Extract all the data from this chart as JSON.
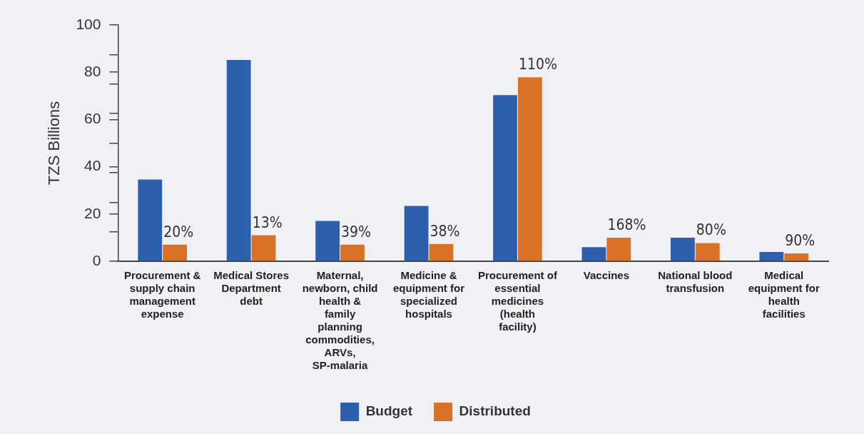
{
  "chart_data": {
    "type": "bar",
    "ylabel": "TZS Billions",
    "categories": [
      "Procurement & supply chain management expense",
      "Medical Stores Department debt",
      "Maternal, newborn, child health & family planning commodities, ARVs, SP-malaria",
      "Medicine & equipment for specialized hospitals",
      "Procurement of essential medicines (health facility)",
      "Vaccines",
      "National blood transfusion",
      "Medical equipment for health facilities"
    ],
    "series": [
      {
        "name": "Budget",
        "color": "#2e5fad",
        "values": [
          34.6,
          85.2,
          17.1,
          23.4,
          70.3,
          6.0,
          10.0,
          3.9
        ]
      },
      {
        "name": "Distributed",
        "color": "#d97126",
        "values": [
          7.0,
          11.0,
          7.0,
          7.3,
          77.9,
          10.0,
          7.7,
          3.3
        ]
      }
    ],
    "annotations": [
      {
        "text": "20%",
        "x": "Procurement & supply chain management expense",
        "y": 7.0
      },
      {
        "text": "13%",
        "x": "Medical Stores Department debt",
        "y": 11.0
      },
      {
        "text": "39%",
        "x": "Maternal, newborn, child health & family planning commodities, ARVs, SP-malaria",
        "y": 7.0
      },
      {
        "text": "38%",
        "x": "Medicine & equipment for specialized hospitals",
        "y": 7.3
      },
      {
        "text": "110%",
        "x": "Procurement of essential medicines (health facility)",
        "y": 77.9
      },
      {
        "text": "168%",
        "x": "Vaccines",
        "y": 10.0
      },
      {
        "text": "80%",
        "x": "National blood transfusion",
        "y": 7.7
      },
      {
        "text": "90%",
        "x": "Medical equipment for health facilities",
        "y": 3.3
      }
    ],
    "ylim": [
      0,
      100
    ],
    "yticks": [
      0,
      {
        "value": 12.5,
        "label": null
      },
      20,
      {
        "value": 25,
        "label": null
      },
      {
        "value": 37.5,
        "label": null
      },
      40,
      {
        "value": 50,
        "label": null
      },
      60,
      {
        "value": 62.5,
        "label": null
      },
      {
        "value": 75,
        "label": null
      },
      80,
      {
        "value": 87.5,
        "label": null
      },
      100
    ],
    "grid": false,
    "legend": "bottom"
  }
}
